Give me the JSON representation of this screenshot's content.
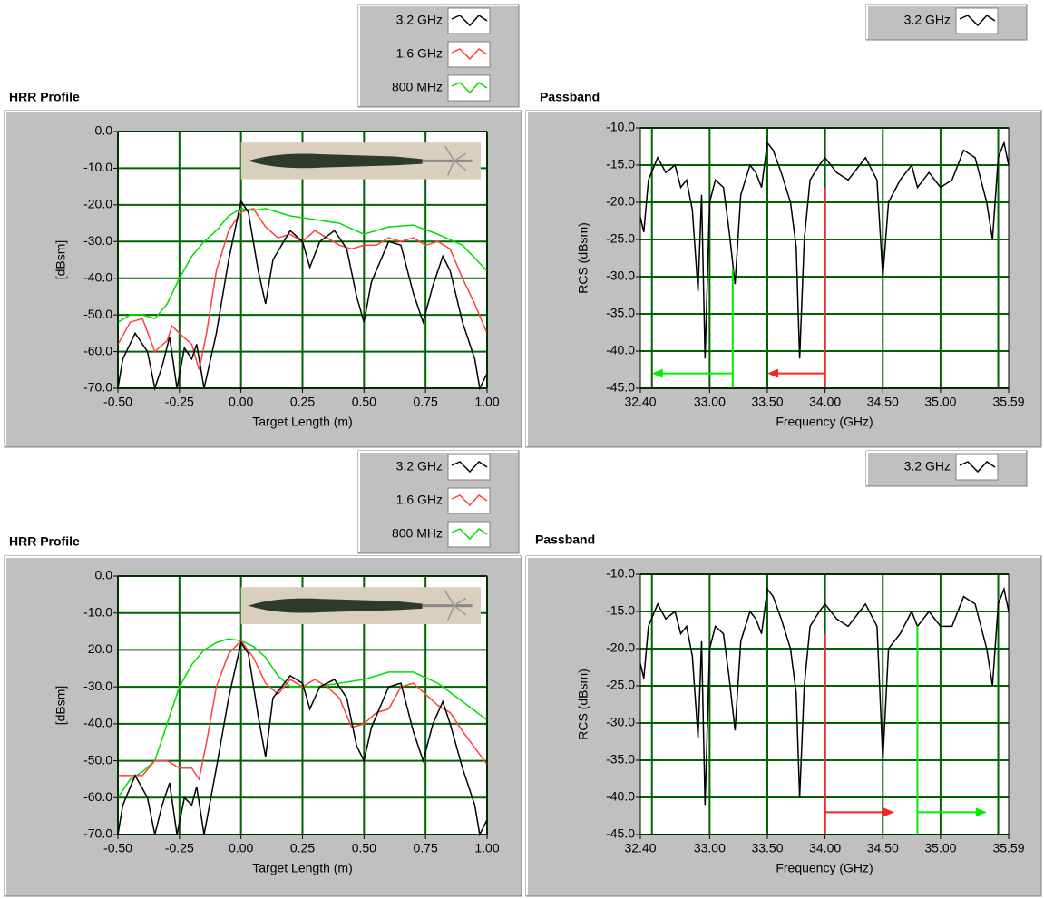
{
  "chart_data": [
    {
      "type": "line",
      "title": "HRR Profile",
      "x_label": "Target Length (m)",
      "y_label": "[dBsm]",
      "xlim": [
        -0.5,
        1.0
      ],
      "ylim": [
        -70,
        0
      ],
      "grid": true,
      "legend": "top-right",
      "photo": true,
      "xticks": [
        {
          "value": -0.5,
          "label": "-0.50"
        },
        {
          "value": -0.25,
          "label": "-0.25"
        },
        {
          "value": 0,
          "label": "0.00"
        },
        {
          "value": 0.25,
          "label": "0.25"
        },
        {
          "value": 0.5,
          "label": "0.50"
        },
        {
          "value": 0.75,
          "label": "0.75"
        },
        {
          "value": 1.0,
          "label": "1.00"
        }
      ],
      "yticks": [
        {
          "value": 0,
          "label": "0.0"
        },
        {
          "value": -10,
          "label": "-10.0"
        },
        {
          "value": -20,
          "label": "-20.0"
        },
        {
          "value": -30,
          "label": "-30.0"
        },
        {
          "value": -40,
          "label": "-40.0"
        },
        {
          "value": -50,
          "label": "-50.0"
        },
        {
          "value": -60,
          "label": "-60.0"
        },
        {
          "value": -70,
          "label": "-70.0"
        }
      ],
      "series": [
        {
          "name": "3.2 GHz",
          "color": "#000000",
          "x": [
            -0.5,
            -0.48,
            -0.43,
            -0.38,
            -0.35,
            -0.32,
            -0.29,
            -0.26,
            -0.23,
            -0.2,
            -0.18,
            -0.15,
            -0.1,
            -0.05,
            0.0,
            0.03,
            0.07,
            0.1,
            0.13,
            0.2,
            0.25,
            0.28,
            0.32,
            0.38,
            0.43,
            0.47,
            0.5,
            0.53,
            0.6,
            0.65,
            0.7,
            0.74,
            0.78,
            0.82,
            0.85,
            0.9,
            0.95,
            0.97,
            1.0
          ],
          "values": [
            -70,
            -62,
            -55,
            -60,
            -70,
            -64,
            -56,
            -70,
            -59,
            -62,
            -58,
            -70,
            -55,
            -35,
            -19,
            -22,
            -38,
            -47,
            -35,
            -27,
            -30,
            -37,
            -30,
            -27,
            -32,
            -45,
            -52,
            -41,
            -30,
            -31,
            -44,
            -52,
            -42,
            -34,
            -38,
            -52,
            -62,
            -70,
            -66
          ]
        },
        {
          "name": "1.6 GHz",
          "color": "#ff4040",
          "x": [
            -0.5,
            -0.45,
            -0.4,
            -0.35,
            -0.3,
            -0.28,
            -0.25,
            -0.2,
            -0.17,
            -0.14,
            -0.1,
            -0.05,
            0.0,
            0.05,
            0.1,
            0.15,
            0.2,
            0.25,
            0.3,
            0.35,
            0.4,
            0.45,
            0.5,
            0.55,
            0.6,
            0.65,
            0.7,
            0.75,
            0.8,
            0.85,
            0.9,
            0.95,
            1.0
          ],
          "values": [
            -58,
            -52,
            -51,
            -60,
            -57,
            -53,
            -55,
            -58,
            -65,
            -55,
            -38,
            -27,
            -22,
            -21,
            -26,
            -29,
            -28,
            -30,
            -27,
            -29,
            -31,
            -32,
            -31,
            -31,
            -29,
            -30,
            -29,
            -31,
            -30,
            -32,
            -40,
            -47,
            -55
          ]
        },
        {
          "name": "800 MHz",
          "color": "#00dd00",
          "x": [
            -0.5,
            -0.45,
            -0.4,
            -0.35,
            -0.3,
            -0.25,
            -0.2,
            -0.15,
            -0.1,
            -0.05,
            0.0,
            0.05,
            0.1,
            0.15,
            0.2,
            0.3,
            0.4,
            0.5,
            0.6,
            0.7,
            0.8,
            0.9,
            1.0
          ],
          "values": [
            -52,
            -50,
            -50,
            -51,
            -47,
            -40,
            -34,
            -30,
            -27,
            -23,
            -21,
            -21.5,
            -21,
            -22,
            -23,
            -24,
            -25,
            -28,
            -26,
            -25.5,
            -28,
            -31,
            -38
          ]
        }
      ]
    },
    {
      "type": "line",
      "title": "Passband",
      "x_label": "Frequency (GHz)",
      "y_label": "RCS (dBsm)",
      "xlim": [
        32.4,
        35.59
      ],
      "ylim": [
        -45,
        -10
      ],
      "grid": true,
      "legend": "top-right",
      "xgrid": [
        32.5,
        33.0,
        33.5,
        34.0,
        34.5,
        35.0,
        35.5
      ],
      "xticks": [
        {
          "value": 32.4,
          "label": "32.40"
        },
        {
          "value": 33.0,
          "label": "33.00"
        },
        {
          "value": 33.5,
          "label": "33.50"
        },
        {
          "value": 34.0,
          "label": "34.00"
        },
        {
          "value": 34.5,
          "label": "34.50"
        },
        {
          "value": 35.0,
          "label": "35.00"
        },
        {
          "value": 35.59,
          "label": "35.59"
        }
      ],
      "yticks": [
        {
          "value": -10,
          "label": "-10.0"
        },
        {
          "value": -15,
          "label": "-15.0"
        },
        {
          "value": -20,
          "label": "-20.0"
        },
        {
          "value": -25,
          "label": "-25.0"
        },
        {
          "value": -30,
          "label": "-30.0"
        },
        {
          "value": -35,
          "label": "-35.0"
        },
        {
          "value": -40,
          "label": "-40.0"
        },
        {
          "value": -45,
          "label": "-45.0"
        }
      ],
      "series": [
        {
          "name": "3.2 GHz",
          "color": "#000000",
          "x": [
            32.4,
            32.43,
            32.47,
            32.55,
            32.62,
            32.7,
            32.75,
            32.8,
            32.85,
            32.9,
            32.93,
            32.96,
            33.0,
            33.05,
            33.12,
            33.17,
            33.22,
            33.27,
            33.35,
            33.4,
            33.45,
            33.5,
            33.55,
            33.62,
            33.7,
            33.75,
            33.78,
            33.82,
            33.87,
            33.95,
            34.0,
            34.1,
            34.2,
            34.3,
            34.35,
            34.45,
            34.5,
            34.55,
            34.65,
            34.75,
            34.8,
            34.9,
            35.0,
            35.1,
            35.2,
            35.3,
            35.4,
            35.45,
            35.5,
            35.55,
            35.59
          ],
          "values": [
            -22,
            -24,
            -17,
            -14,
            -16,
            -15,
            -18,
            -17,
            -21,
            -32,
            -19,
            -41,
            -20,
            -17,
            -18,
            -24,
            -31,
            -19,
            -15,
            -16,
            -18,
            -12,
            -13,
            -16,
            -20,
            -26,
            -41,
            -25,
            -17,
            -15,
            -14,
            -16,
            -17,
            -15,
            -14,
            -17,
            -30,
            -20,
            -17,
            -15,
            -18,
            -16,
            -18,
            -17,
            -13,
            -14,
            -20,
            -25,
            -14,
            -12,
            -15
          ]
        }
      ],
      "cursors": [
        {
          "color": "#00ee00",
          "x": 33.2,
          "y_top": -29,
          "arrow_y": -43,
          "arrow_to": 32.5
        },
        {
          "color": "#ff2020",
          "x": 34.0,
          "y_top": -18,
          "arrow_y": -43,
          "arrow_to": 33.5
        }
      ]
    },
    {
      "type": "line",
      "title": "HRR Profile",
      "x_label": "Target Length (m)",
      "y_label": "[dBsm]",
      "xlim": [
        -0.5,
        1.0
      ],
      "ylim": [
        -70,
        0
      ],
      "grid": true,
      "legend": "top-right",
      "photo": true,
      "xticks": [
        {
          "value": -0.5,
          "label": "-0.50"
        },
        {
          "value": -0.25,
          "label": "-0.25"
        },
        {
          "value": 0,
          "label": "0.00"
        },
        {
          "value": 0.25,
          "label": "0.25"
        },
        {
          "value": 0.5,
          "label": "0.50"
        },
        {
          "value": 0.75,
          "label": "0.75"
        },
        {
          "value": 1.0,
          "label": "1.00"
        }
      ],
      "yticks": [
        {
          "value": 0,
          "label": "0.0"
        },
        {
          "value": -10,
          "label": "-10.0"
        },
        {
          "value": -20,
          "label": "-20.0"
        },
        {
          "value": -30,
          "label": "-30.0"
        },
        {
          "value": -40,
          "label": "-40.0"
        },
        {
          "value": -50,
          "label": "-50.0"
        },
        {
          "value": -60,
          "label": "-60.0"
        },
        {
          "value": -70,
          "label": "-70.0"
        }
      ],
      "series": [
        {
          "name": "3.2 GHz",
          "color": "#000000",
          "x": [
            -0.5,
            -0.48,
            -0.43,
            -0.38,
            -0.35,
            -0.32,
            -0.29,
            -0.26,
            -0.23,
            -0.2,
            -0.18,
            -0.15,
            -0.1,
            -0.05,
            0.0,
            0.03,
            0.07,
            0.1,
            0.13,
            0.2,
            0.25,
            0.28,
            0.32,
            0.38,
            0.43,
            0.47,
            0.5,
            0.53,
            0.6,
            0.65,
            0.7,
            0.74,
            0.78,
            0.82,
            0.85,
            0.9,
            0.95,
            0.97,
            1.0
          ],
          "values": [
            -70,
            -62,
            -54,
            -60,
            -70,
            -62,
            -56,
            -70,
            -60,
            -62,
            -57,
            -70,
            -52,
            -33,
            -18,
            -21,
            -38,
            -49,
            -33,
            -27,
            -29,
            -36,
            -30,
            -28,
            -33,
            -46,
            -50,
            -41,
            -30,
            -29,
            -42,
            -50,
            -40,
            -34,
            -40,
            -52,
            -62,
            -70,
            -66
          ]
        },
        {
          "name": "1.6 GHz",
          "color": "#ff4040",
          "x": [
            -0.5,
            -0.4,
            -0.35,
            -0.3,
            -0.25,
            -0.2,
            -0.17,
            -0.14,
            -0.1,
            -0.05,
            0.0,
            0.05,
            0.1,
            0.15,
            0.2,
            0.25,
            0.3,
            0.35,
            0.4,
            0.45,
            0.5,
            0.55,
            0.6,
            0.65,
            0.7,
            0.75,
            0.8,
            0.85,
            0.9,
            1.0
          ],
          "values": [
            -54,
            -54,
            -50,
            -50,
            -52,
            -52,
            -55,
            -45,
            -30,
            -21,
            -17.5,
            -22,
            -29,
            -32,
            -28,
            -30,
            -28,
            -30,
            -33,
            -41,
            -40,
            -37,
            -36,
            -30,
            -29,
            -32,
            -35,
            -37,
            -42,
            -51
          ]
        },
        {
          "name": "800 MHz",
          "color": "#00dd00",
          "x": [
            -0.5,
            -0.45,
            -0.4,
            -0.35,
            -0.3,
            -0.25,
            -0.2,
            -0.15,
            -0.1,
            -0.05,
            0.0,
            0.05,
            0.1,
            0.15,
            0.2,
            0.3,
            0.4,
            0.5,
            0.6,
            0.7,
            0.8,
            0.9,
            1.0
          ],
          "values": [
            -60,
            -55,
            -53,
            -50,
            -40,
            -30,
            -24,
            -20,
            -18,
            -17,
            -17.5,
            -19,
            -22,
            -27,
            -30,
            -30,
            -29,
            -28,
            -26,
            -26,
            -29,
            -34,
            -39
          ]
        }
      ]
    },
    {
      "type": "line",
      "title": "Passband",
      "x_label": "Frequency (GHz)",
      "y_label": "RCS (dBsm)",
      "xlim": [
        32.4,
        35.59
      ],
      "ylim": [
        -45,
        -10
      ],
      "grid": true,
      "legend": "top-right",
      "xgrid": [
        32.5,
        33.0,
        33.5,
        34.0,
        34.5,
        35.0,
        35.5
      ],
      "xticks": [
        {
          "value": 32.4,
          "label": "32.40"
        },
        {
          "value": 33.0,
          "label": "33.00"
        },
        {
          "value": 33.5,
          "label": "33.50"
        },
        {
          "value": 34.0,
          "label": "34.00"
        },
        {
          "value": 34.5,
          "label": "34.50"
        },
        {
          "value": 35.0,
          "label": "35.00"
        },
        {
          "value": 35.59,
          "label": "35.59"
        }
      ],
      "yticks": [
        {
          "value": -10,
          "label": "-10.0"
        },
        {
          "value": -15,
          "label": "-15.0"
        },
        {
          "value": -20,
          "label": "-20.0"
        },
        {
          "value": -25,
          "label": "-25.0"
        },
        {
          "value": -30,
          "label": "-30.0"
        },
        {
          "value": -35,
          "label": "-35.0"
        },
        {
          "value": -40,
          "label": "-40.0"
        },
        {
          "value": -45,
          "label": "-45.0"
        }
      ],
      "series": [
        {
          "name": "3.2 GHz",
          "color": "#000000",
          "x": [
            32.4,
            32.43,
            32.47,
            32.55,
            32.62,
            32.7,
            32.75,
            32.8,
            32.85,
            32.9,
            32.93,
            32.96,
            33.0,
            33.05,
            33.12,
            33.17,
            33.22,
            33.27,
            33.35,
            33.4,
            33.45,
            33.5,
            33.55,
            33.62,
            33.7,
            33.75,
            33.78,
            33.82,
            33.87,
            33.95,
            34.0,
            34.1,
            34.2,
            34.3,
            34.35,
            34.45,
            34.5,
            34.55,
            34.65,
            34.75,
            34.8,
            34.9,
            35.0,
            35.1,
            35.2,
            35.3,
            35.4,
            35.45,
            35.5,
            35.55,
            35.59
          ],
          "values": [
            -22,
            -24,
            -17,
            -14,
            -16,
            -15,
            -18,
            -17,
            -21,
            -32,
            -19,
            -41,
            -20,
            -17,
            -18,
            -24,
            -31,
            -19,
            -15,
            -16,
            -18,
            -12,
            -13,
            -16,
            -20,
            -26,
            -40,
            -25,
            -17,
            -15,
            -14,
            -16,
            -17,
            -15,
            -14,
            -17,
            -35,
            -20,
            -18,
            -15,
            -17,
            -15,
            -17,
            -17,
            -13,
            -14,
            -20,
            -25,
            -14,
            -12,
            -15
          ]
        }
      ],
      "cursors": [
        {
          "color": "#ff2020",
          "x": 34.0,
          "y_top": -18,
          "arrow_y": -42,
          "arrow_to": 34.6
        },
        {
          "color": "#00ee00",
          "x": 34.8,
          "y_top": -17,
          "arrow_y": -42,
          "arrow_to": 35.4
        }
      ]
    }
  ]
}
